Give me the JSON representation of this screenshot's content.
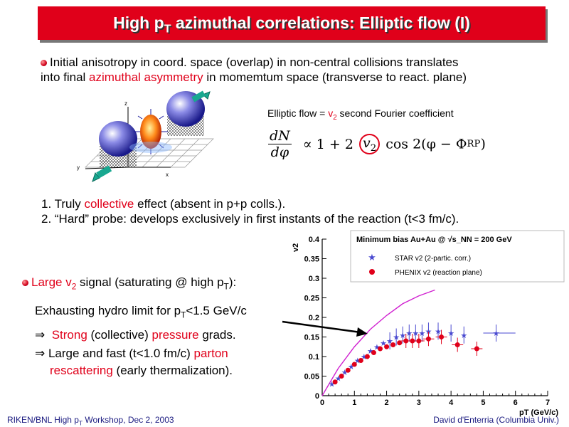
{
  "title": {
    "pre": "High p",
    "sub": "T",
    "post": " azimuthal correlations: Elliptic flow (I)"
  },
  "intro": {
    "line1": "Initial anisotropy in coord. space (overlap) in non-central collisions translates",
    "line2_pre": "into final ",
    "line2_red": "azimuthal asymmetry",
    "line2_post": " in momemtum space (transverse to react. plane)"
  },
  "elliptic": {
    "pre": "Elliptic flow = ",
    "v": "v",
    "sub": "2",
    "post": " second Fourier coefficient"
  },
  "formula": {
    "num": "dN",
    "den": "dφ",
    "rest1": "∝  1  +  2",
    "v": "v",
    "vsub": "2",
    "rest2": "cos 2(φ − Φ",
    "rp": "RP",
    "close": ")"
  },
  "diagram": {
    "z": "z",
    "y": "y",
    "x": "x"
  },
  "points": {
    "p1_pre": "1. Truly ",
    "p1_red": "collective",
    "p1_post": " effect (absent in p+p colls.).",
    "p2": "2. “Hard” probe: develops exclusively in first instants of the reaction (t<3 fm/c)."
  },
  "bullet2": {
    "pre": "Large v",
    "sub": "2",
    "mid": " signal (saturating @ high p",
    "sub2": "T",
    "post": "):"
  },
  "hydro": {
    "pre": "Exhausting hydro limit for p",
    "sub": "T",
    "post": "<1.5 GeV/c"
  },
  "strong": {
    "arrow": "⇒",
    "red1": "Strong",
    "mid": " (collective) ",
    "red2": "pressure",
    "post": " grads."
  },
  "large": {
    "arrow": "⇒",
    "pre": " Large and fast (t<1.0 fm/c) ",
    "red": "parton",
    "line2_red": "rescattering",
    "line2_post": " (early thermalization)."
  },
  "footer": {
    "left_pre": "RIKEN/BNL High p",
    "left_sub": "T",
    "left_post": " Workshop, Dec 2, 2003",
    "right": "David d'Enterria (Columbia Univ.)"
  },
  "chart_data": {
    "type": "scatter",
    "xlabel": "p_T (GeV/c)",
    "ylabel": "v_2",
    "xlim": [
      0,
      7
    ],
    "ylim": [
      0,
      0.4
    ],
    "xticks": [
      "0",
      "1",
      "2",
      "3",
      "4",
      "5",
      "6",
      "7"
    ],
    "yticks": [
      "0",
      "0.05",
      "0.1",
      "0.15",
      "0.2",
      "0.25",
      "0.3",
      "0.35",
      "0.4"
    ],
    "legend": {
      "title": "Minimum bias Au+Au @ √s_NN = 200 GeV",
      "position": "top-right",
      "entries": [
        "STAR v2 (2-partic. corr.)",
        "PHENIX v2 (reaction plane)"
      ]
    },
    "series": [
      {
        "name": "STAR v2 (2-partic. corr.)",
        "marker": "star",
        "color": "#4a4ad0",
        "x": [
          0.3,
          0.5,
          0.7,
          0.9,
          1.1,
          1.3,
          1.5,
          1.7,
          1.9,
          2.1,
          2.3,
          2.5,
          2.7,
          2.9,
          3.1,
          3.3,
          3.6,
          4.0,
          4.4,
          5.4
        ],
        "y": [
          0.03,
          0.045,
          0.06,
          0.075,
          0.09,
          0.1,
          0.115,
          0.125,
          0.135,
          0.14,
          0.15,
          0.155,
          0.16,
          0.16,
          0.16,
          0.165,
          0.165,
          0.16,
          0.155,
          0.16
        ]
      },
      {
        "name": "PHENIX v2 (reaction plane)",
        "marker": "circle",
        "color": "#e0001a",
        "x": [
          0.4,
          0.6,
          0.8,
          1.0,
          1.2,
          1.4,
          1.6,
          1.8,
          2.0,
          2.2,
          2.4,
          2.6,
          2.8,
          3.0,
          3.3,
          3.7,
          4.2,
          4.8
        ],
        "y": [
          0.035,
          0.05,
          0.065,
          0.08,
          0.09,
          0.1,
          0.11,
          0.12,
          0.125,
          0.13,
          0.135,
          0.14,
          0.14,
          0.14,
          0.145,
          0.15,
          0.13,
          0.12
        ]
      },
      {
        "name": "hydro",
        "marker": "line",
        "color": "#d020d0",
        "x": [
          0,
          0.5,
          1.0,
          1.5,
          2.0,
          2.5,
          3.0,
          3.5
        ],
        "y": [
          0,
          0.07,
          0.125,
          0.17,
          0.205,
          0.235,
          0.255,
          0.27
        ]
      }
    ]
  }
}
